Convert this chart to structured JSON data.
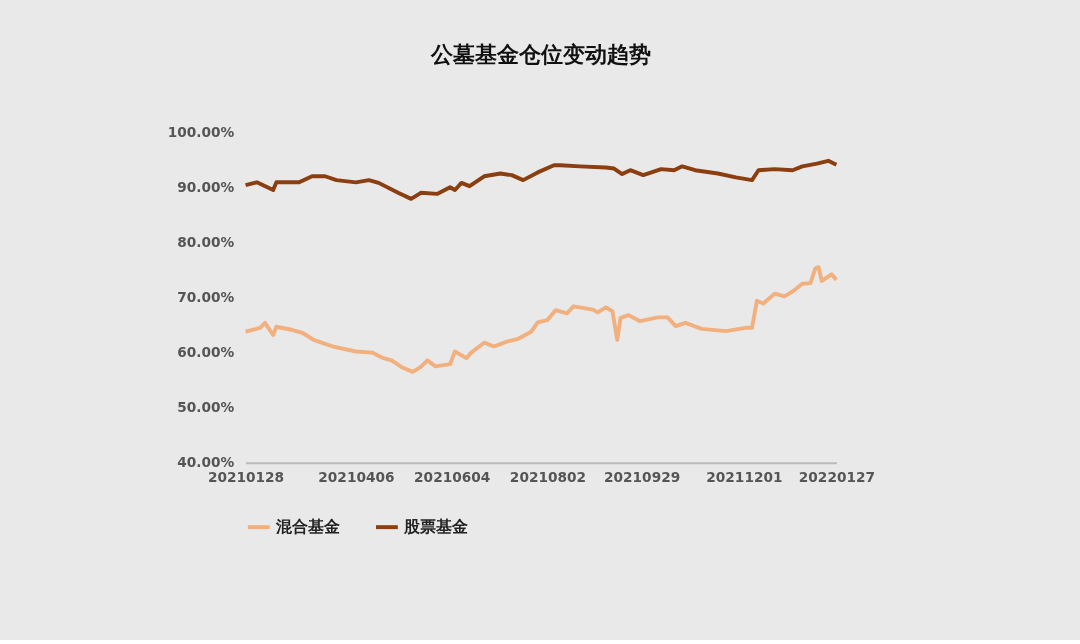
{
  "chart_data": {
    "type": "line",
    "title": "公墓基金仓位变动趋势",
    "xlim": [
      "2021-01-28",
      "2022-01-27"
    ],
    "xticks": [
      {
        "value": "2021-01-28",
        "label": "20210128"
      },
      {
        "value": "2021-04-06",
        "label": "20210406"
      },
      {
        "value": "2021-06-04",
        "label": "20210604"
      },
      {
        "value": "2021-08-02",
        "label": "20210802"
      },
      {
        "value": "2021-09-29",
        "label": "20210929"
      },
      {
        "value": "2021-12-01",
        "label": "20211201"
      },
      {
        "value": "2022-01-27",
        "label": "20220127"
      }
    ],
    "ylim": [
      40,
      100
    ],
    "yticks": [
      {
        "value": 40,
        "label": "40.00%"
      },
      {
        "value": 50,
        "label": "50.00%"
      },
      {
        "value": 60,
        "label": "60.00%"
      },
      {
        "value": 70,
        "label": "70.00%"
      },
      {
        "value": 80,
        "label": "80.00%"
      },
      {
        "value": 90,
        "label": "90.00%"
      },
      {
        "value": 100,
        "label": "100.00%"
      }
    ],
    "grid": false,
    "legend": "bottom",
    "marker": "none",
    "line_style": "solid",
    "series": [
      {
        "name": "混合基金",
        "color": "#f2b07e",
        "x": [
          "2021-01-28",
          "2021-02-06",
          "2021-02-09",
          "2021-02-14",
          "2021-02-16",
          "2021-02-26",
          "2021-03-04",
          "2021-03-11",
          "2021-03-23",
          "2021-04-06",
          "2021-04-16",
          "2021-04-22",
          "2021-04-28",
          "2021-05-04",
          "2021-05-11",
          "2021-05-16",
          "2021-05-20",
          "2021-05-25",
          "2021-06-03",
          "2021-06-06",
          "2021-06-13",
          "2021-06-16",
          "2021-06-24",
          "2021-06-30",
          "2021-07-08",
          "2021-07-15",
          "2021-07-23",
          "2021-07-27",
          "2021-08-02",
          "2021-08-07",
          "2021-08-14",
          "2021-08-18",
          "2021-08-30",
          "2021-09-02",
          "2021-09-07",
          "2021-09-11",
          "2021-09-14",
          "2021-09-16",
          "2021-09-21",
          "2021-09-28",
          "2021-10-09",
          "2021-10-15",
          "2021-10-20",
          "2021-10-26",
          "2021-11-05",
          "2021-11-20",
          "2021-12-02",
          "2021-12-06",
          "2021-12-09",
          "2021-12-13",
          "2021-12-20",
          "2021-12-26",
          "2021-12-31",
          "2022-01-06",
          "2022-01-11",
          "2022-01-14",
          "2022-01-16",
          "2022-01-18",
          "2022-01-24",
          "2022-01-27"
        ],
        "values": [
          63.8,
          64.5,
          65.4,
          63.2,
          64.7,
          64.1,
          63.6,
          62.3,
          61.1,
          60.2,
          60.0,
          59.1,
          58.6,
          57.4,
          56.5,
          57.4,
          58.6,
          57.5,
          57.9,
          60.2,
          59.0,
          60.0,
          61.8,
          61.1,
          62.0,
          62.5,
          63.8,
          65.5,
          65.9,
          67.7,
          67.1,
          68.4,
          67.8,
          67.3,
          68.2,
          67.5,
          62.3,
          66.3,
          66.8,
          65.7,
          66.4,
          66.4,
          64.8,
          65.4,
          64.3,
          63.9,
          64.5,
          64.5,
          69.4,
          68.9,
          70.7,
          70.2,
          71.1,
          72.5,
          72.6,
          75.3,
          75.5,
          73.0,
          74.2,
          73.2
        ]
      },
      {
        "name": "股票基金",
        "color": "#8b3e10",
        "x": [
          "2021-01-28",
          "2021-02-04",
          "2021-02-14",
          "2021-02-16",
          "2021-03-02",
          "2021-03-10",
          "2021-03-18",
          "2021-03-25",
          "2021-04-06",
          "2021-04-14",
          "2021-04-20",
          "2021-05-02",
          "2021-05-10",
          "2021-05-16",
          "2021-05-26",
          "2021-06-03",
          "2021-06-06",
          "2021-06-10",
          "2021-06-15",
          "2021-06-24",
          "2021-07-04",
          "2021-07-11",
          "2021-07-18",
          "2021-07-27",
          "2021-08-06",
          "2021-08-10",
          "2021-08-22",
          "2021-09-07",
          "2021-09-12",
          "2021-09-17",
          "2021-09-22",
          "2021-09-30",
          "2021-10-11",
          "2021-10-19",
          "2021-10-24",
          "2021-11-01",
          "2021-11-15",
          "2021-11-26",
          "2021-12-06",
          "2021-12-10",
          "2021-12-20",
          "2021-12-31",
          "2022-01-06",
          "2022-01-15",
          "2022-01-22",
          "2022-01-27"
        ],
        "values": [
          90.4,
          90.9,
          89.5,
          90.9,
          90.9,
          92.0,
          92.0,
          91.3,
          90.9,
          91.3,
          90.8,
          89.0,
          87.9,
          89.0,
          88.8,
          90.0,
          89.5,
          90.8,
          90.2,
          92.0,
          92.5,
          92.2,
          91.3,
          92.7,
          94.0,
          94.0,
          93.8,
          93.6,
          93.4,
          92.4,
          93.1,
          92.2,
          93.3,
          93.1,
          93.8,
          93.1,
          92.5,
          91.8,
          91.3,
          93.1,
          93.3,
          93.1,
          93.8,
          94.3,
          94.8,
          94.1
        ]
      }
    ]
  }
}
